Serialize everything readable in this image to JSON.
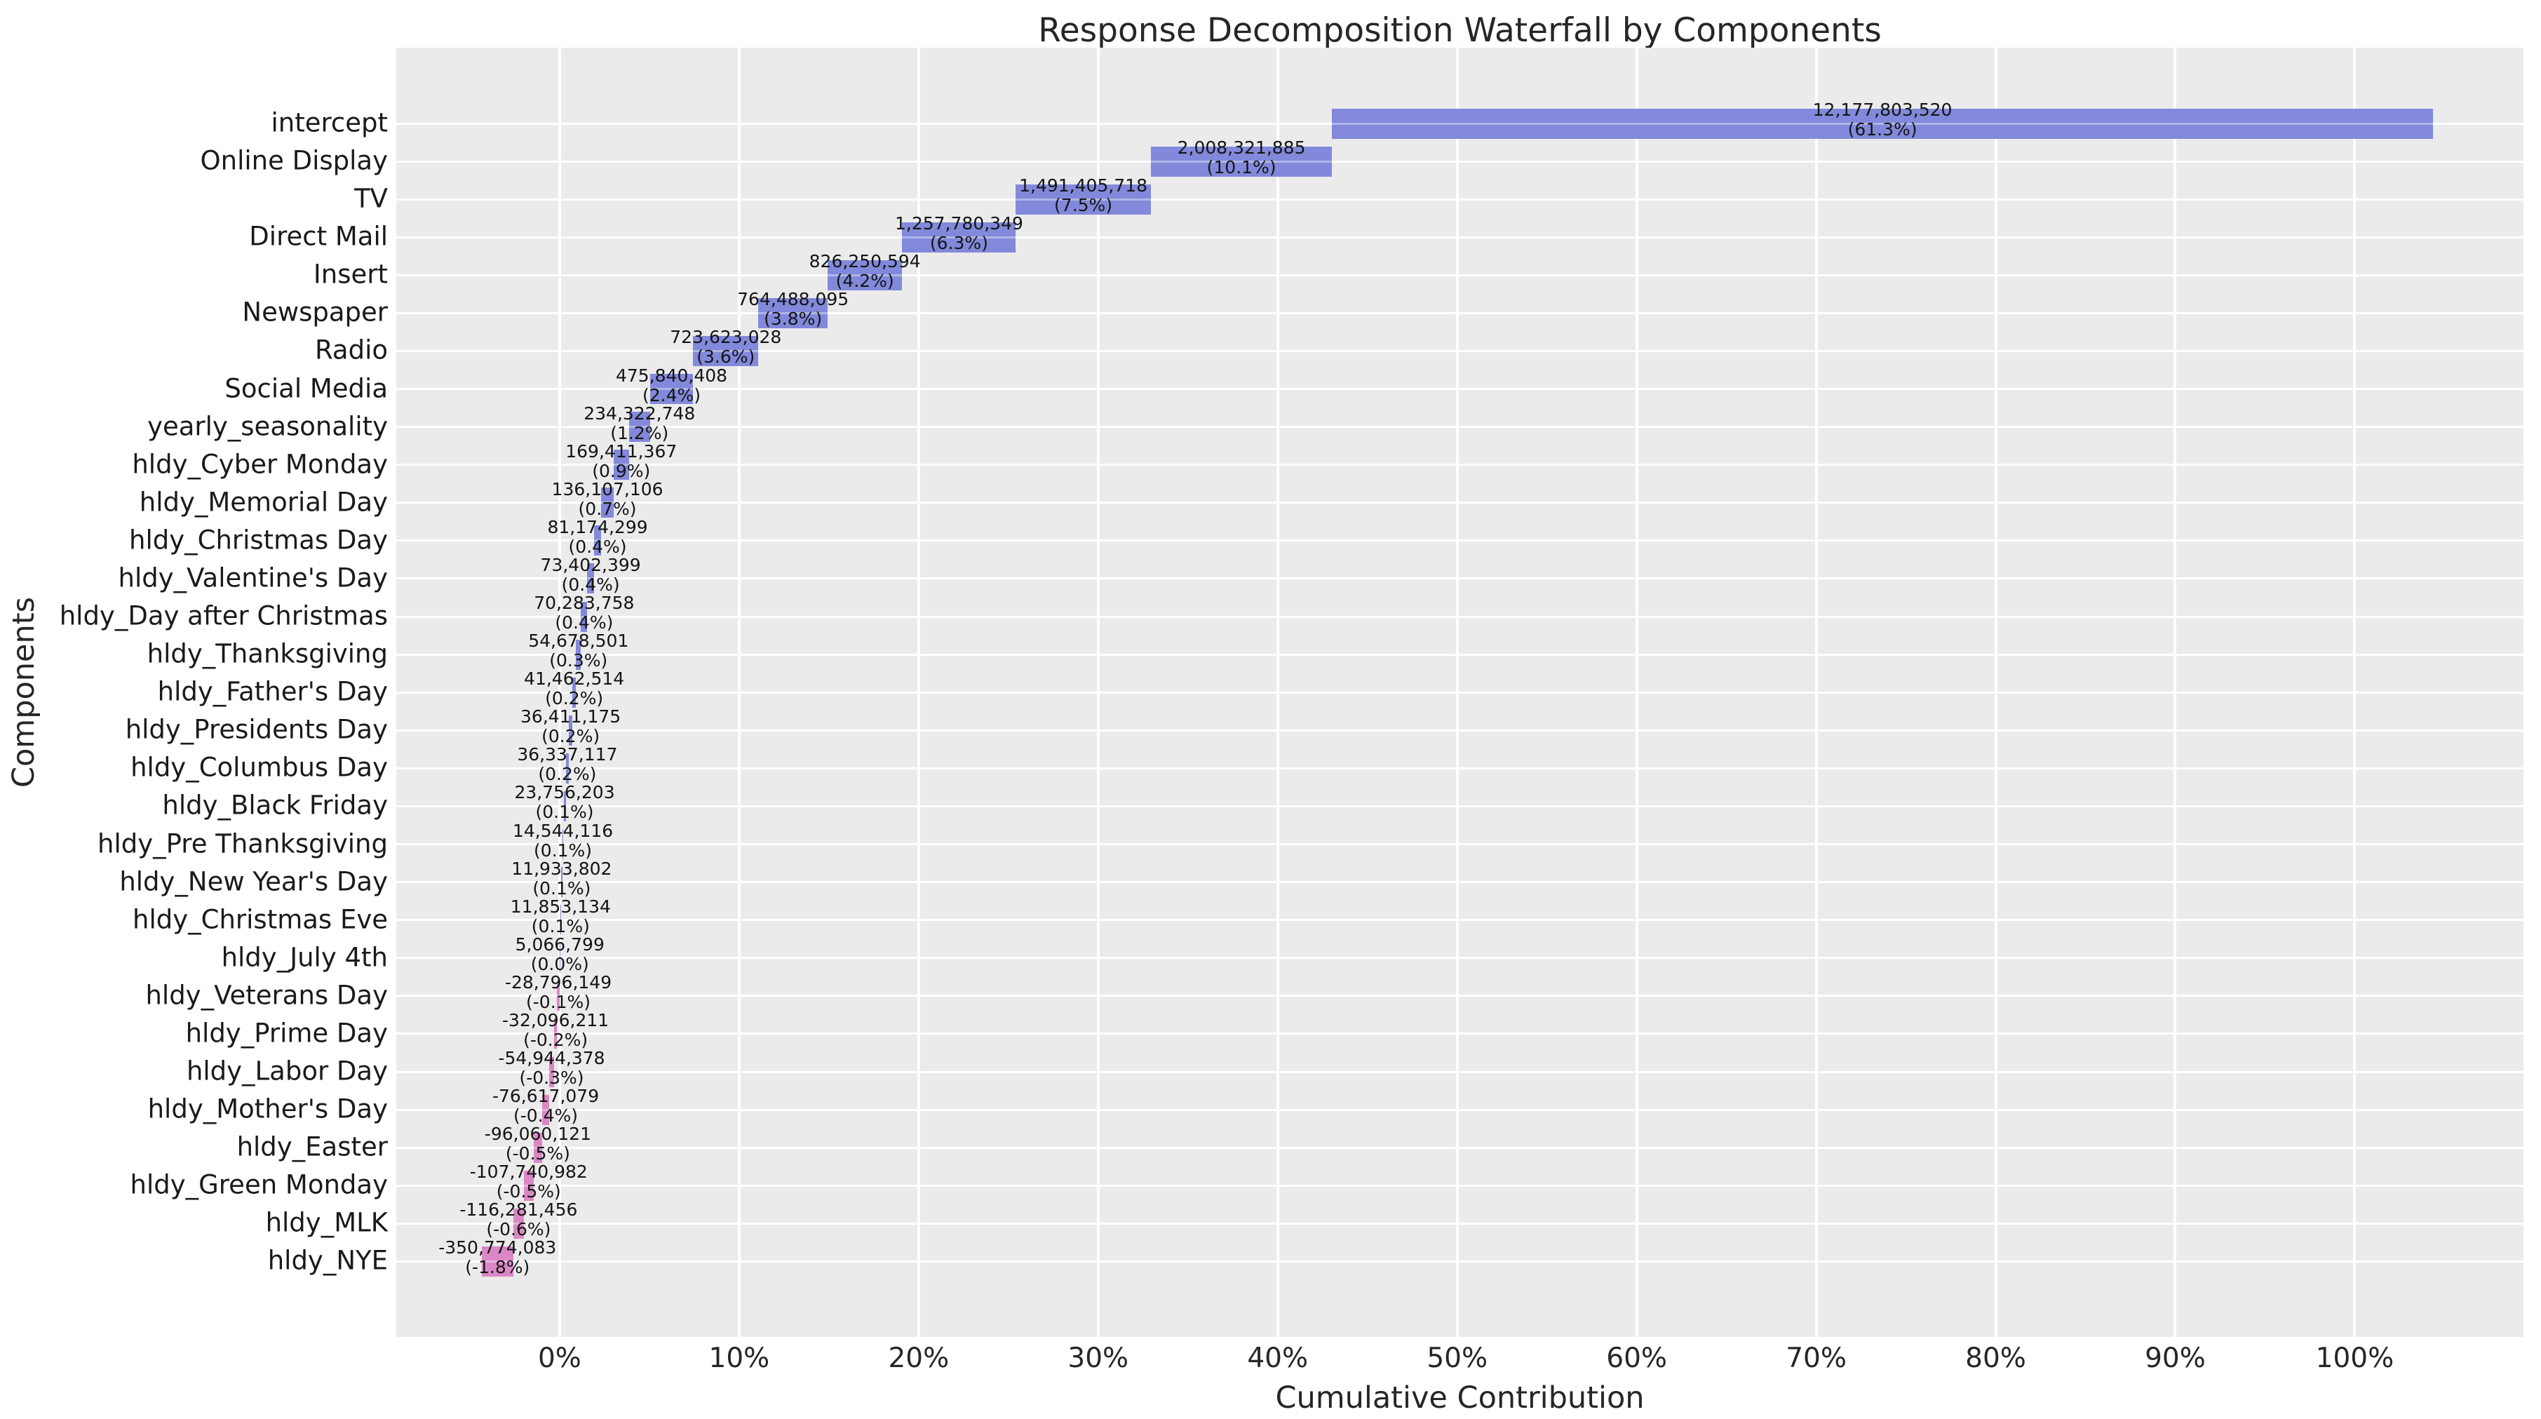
{
  "title": "Response Decomposition Waterfall by Components",
  "x_axis": {
    "label": "Cumulative Contribution",
    "tick_values": [
      0,
      10,
      20,
      30,
      40,
      50,
      60,
      70,
      80,
      90,
      100
    ],
    "tick_labels": [
      "0%",
      "10%",
      "20%",
      "30%",
      "40%",
      "50%",
      "60%",
      "70%",
      "80%",
      "90%",
      "100%"
    ]
  },
  "y_axis": {
    "label": "Components"
  },
  "colors": {
    "positive_bar": "#8289db",
    "negative_bar": "#db87c6",
    "plot_background": "#ebebeb",
    "gridline": "#ffffff",
    "text": "#1a1a1a"
  },
  "chart_data": {
    "type": "bar",
    "subtype": "horizontal_waterfall",
    "title": "Response Decomposition Waterfall by Components",
    "xlabel": "Cumulative Contribution",
    "ylabel": "Components",
    "xlim": [
      -9.1,
      109.4
    ],
    "grid": true,
    "legend": false,
    "bar_label_lines": [
      "value_with_thousands_separators",
      "percent_of_total_in_parentheses"
    ],
    "categories": [
      "intercept",
      "Online Display",
      "TV",
      "Direct Mail",
      "Insert",
      "Newspaper",
      "Radio",
      "Social Media",
      "yearly_seasonality",
      "hldy_Cyber Monday",
      "hldy_Memorial Day",
      "hldy_Christmas Day",
      "hldy_Valentine's Day",
      "hldy_Day after Christmas",
      "hldy_Thanksgiving",
      "hldy_Father's Day",
      "hldy_Presidents Day",
      "hldy_Columbus Day",
      "hldy_Black Friday",
      "hldy_Pre Thanksgiving",
      "hldy_New Year's Day",
      "hldy_Christmas Eve",
      "hldy_July 4th",
      "hldy_Veterans Day",
      "hldy_Prime Day",
      "hldy_Labor Day",
      "hldy_Mother's Day",
      "hldy_Easter",
      "hldy_Green Monday",
      "hldy_MLK",
      "hldy_NYE"
    ],
    "values": [
      12177803520,
      2008321885,
      1491405718,
      1257780349,
      826250594,
      764488095,
      723623028,
      475840408,
      234322748,
      169411367,
      136107106,
      81174299,
      73402399,
      70283758,
      54678501,
      41462514,
      36411175,
      36337117,
      23756203,
      14544116,
      11933802,
      11853134,
      5066799,
      -28796149,
      -32096211,
      -54944378,
      -76617079,
      -96060121,
      -107740982,
      -116281456,
      -350774083
    ],
    "pct_labels": [
      "61.3%",
      "10.1%",
      "7.5%",
      "6.3%",
      "4.2%",
      "3.8%",
      "3.6%",
      "2.4%",
      "1.2%",
      "0.9%",
      "0.7%",
      "0.4%",
      "0.4%",
      "0.4%",
      "0.3%",
      "0.2%",
      "0.2%",
      "0.2%",
      "0.1%",
      "0.1%",
      "0.1%",
      "0.1%",
      "0.0%",
      "-0.1%",
      "-0.2%",
      "-0.3%",
      "-0.4%",
      "-0.5%",
      "-0.5%",
      "-0.6%",
      "-1.8%"
    ]
  }
}
